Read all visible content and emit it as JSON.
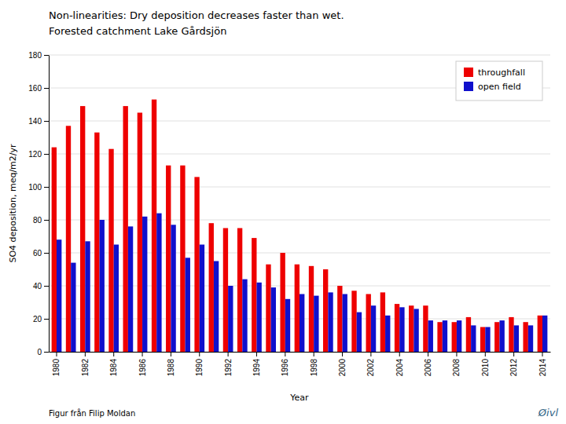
{
  "chart_data": {
    "type": "bar",
    "title": "Non-linearities: Dry deposition decreases faster than wet.",
    "subtitle": "Forested catchment Lake Gårdsjön",
    "x_label": "Year",
    "y_label": "SO4 deposition, meq/m2/yr",
    "annotations": [
      "Figur från Filip Moldan",
      "Øivl"
    ],
    "categories": [
      "1980",
      null,
      "1982",
      null,
      "1984",
      null,
      "1986",
      null,
      "1988",
      null,
      "1990",
      null,
      "1992",
      null,
      "1994",
      null,
      "1996",
      null,
      "1998",
      null,
      "2000",
      null,
      "2002",
      null,
      "2004",
      null,
      "2006",
      null,
      "2008",
      null,
      "2010",
      null,
      "2012",
      null,
      "2014"
    ],
    "series": [
      {
        "name": "throughfall",
        "color": "#EE0000",
        "values": [
          124,
          137,
          149,
          133,
          123,
          149,
          145,
          153,
          113,
          113,
          106,
          78,
          75,
          75,
          69,
          53,
          60,
          53,
          52,
          50,
          40,
          37,
          35,
          36,
          29,
          28,
          28,
          18,
          18,
          21,
          15,
          18,
          21,
          18,
          22
        ]
      },
      {
        "name": "open field",
        "color": "#1010CC",
        "values": [
          68,
          54,
          67,
          80,
          65,
          76,
          82,
          84,
          77,
          57,
          65,
          55,
          40,
          44,
          42,
          39,
          32,
          35,
          34,
          36,
          35,
          24,
          28,
          22,
          27,
          26,
          19,
          19,
          19,
          16,
          15,
          19,
          16,
          16,
          22
        ]
      }
    ],
    "ylim": [
      0,
      180
    ],
    "yticks": [
      0,
      20,
      40,
      60,
      80,
      100,
      120,
      140,
      160,
      180
    ],
    "grid": true,
    "legend": "upper right"
  }
}
